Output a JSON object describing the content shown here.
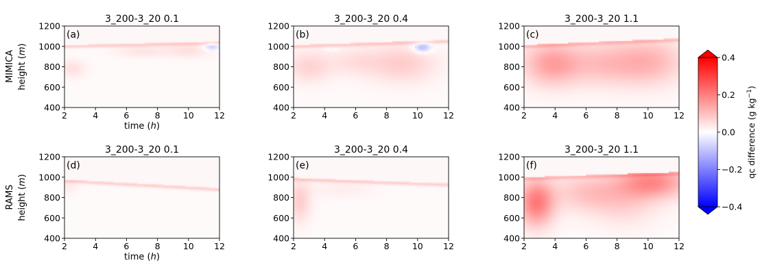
{
  "figure": {
    "row_labels": [
      "MIMICA",
      "RAMS"
    ],
    "ylabel": "height (",
    "ylabel_unit": "m",
    "xlabel": "time (",
    "xlabel_unit": "h",
    "colorbar_label": "qc difference (g kg",
    "colorbar_label_exp": "−1",
    "colorbar_label_tail": ")",
    "colorbar_ticks": [
      "0.4",
      "0.2",
      "0.0",
      "−0.2",
      "−0.4"
    ],
    "colorbar_range": [
      -0.4,
      0.4
    ],
    "colormap": "bwr",
    "colors": {
      "neg": "#0000ff",
      "zero": "#ffffff",
      "pos": "#ff0000"
    }
  },
  "chart_data": [
    {
      "type": "heatmap",
      "panel": "(a)",
      "title": "3_200-3_20 0.1",
      "row": "MIMICA",
      "xlim": [
        2,
        12
      ],
      "ylim": [
        400,
        1200
      ],
      "xticks": [
        "2",
        "4",
        "6",
        "8",
        "10",
        "12"
      ],
      "yticks": [
        "400",
        "600",
        "800",
        "1000",
        "1200"
      ],
      "cloud_top": [
        [
          2,
          1000
        ],
        [
          12,
          1035
        ]
      ],
      "blobs": [
        {
          "x": 2.5,
          "y": 780,
          "sx": 0.6,
          "sy": 60,
          "v": 0.04
        },
        {
          "x": 7,
          "y": 950,
          "sx": 1.2,
          "sy": 40,
          "v": 0.035
        },
        {
          "x": 10,
          "y": 960,
          "sx": 1.0,
          "sy": 50,
          "v": 0.04
        },
        {
          "x": 11.5,
          "y": 995,
          "sx": 0.35,
          "sy": 25,
          "v": -0.09
        }
      ]
    },
    {
      "type": "heatmap",
      "panel": "(b)",
      "title": "3_200-3_20 0.4",
      "row": "MIMICA",
      "xlim": [
        2,
        12
      ],
      "ylim": [
        400,
        1200
      ],
      "xticks": [
        "2",
        "4",
        "6",
        "8",
        "10",
        "12"
      ],
      "yticks": [
        "400",
        "600",
        "800",
        "1000",
        "1200"
      ],
      "cloud_top": [
        [
          2,
          1000
        ],
        [
          12,
          1050
        ]
      ],
      "blobs": [
        {
          "x": 3,
          "y": 800,
          "sx": 1.0,
          "sy": 110,
          "v": 0.06
        },
        {
          "x": 6,
          "y": 850,
          "sx": 1.2,
          "sy": 100,
          "v": 0.04
        },
        {
          "x": 9,
          "y": 830,
          "sx": 1.5,
          "sy": 130,
          "v": 0.07
        },
        {
          "x": 10.3,
          "y": 990,
          "sx": 0.4,
          "sy": 35,
          "v": -0.13
        },
        {
          "x": 4.5,
          "y": 975,
          "sx": 0.3,
          "sy": 15,
          "v": -0.03
        }
      ]
    },
    {
      "type": "heatmap",
      "panel": "(c)",
      "title": "3_200-3_20 1.1",
      "row": "MIMICA",
      "xlim": [
        2,
        12
      ],
      "ylim": [
        400,
        1200
      ],
      "xticks": [
        "2",
        "4",
        "6",
        "8",
        "10",
        "12"
      ],
      "yticks": [
        "400",
        "600",
        "800",
        "1000",
        "1200"
      ],
      "cloud_top": [
        [
          2,
          1000
        ],
        [
          12,
          1065
        ]
      ],
      "blobs": [
        {
          "x": 3.8,
          "y": 830,
          "sx": 1.3,
          "sy": 150,
          "v": 0.14
        },
        {
          "x": 7,
          "y": 830,
          "sx": 1.5,
          "sy": 150,
          "v": 0.08
        },
        {
          "x": 10,
          "y": 850,
          "sx": 1.6,
          "sy": 160,
          "v": 0.11
        }
      ]
    },
    {
      "type": "heatmap",
      "panel": "(d)",
      "title": "3_200-3_20 0.1",
      "row": "RAMS",
      "xlim": [
        2,
        12
      ],
      "ylim": [
        400,
        1200
      ],
      "xticks": [
        "2",
        "4",
        "6",
        "8",
        "10",
        "12"
      ],
      "yticks": [
        "400",
        "600",
        "800",
        "1000",
        "1200"
      ],
      "cloud_top": [
        [
          2,
          965
        ],
        [
          12,
          880
        ]
      ],
      "blobs": [
        {
          "x": 2.3,
          "y": 920,
          "sx": 0.4,
          "sy": 60,
          "v": 0.025
        }
      ]
    },
    {
      "type": "heatmap",
      "panel": "(e)",
      "title": "3_200-3_20 0.4",
      "row": "RAMS",
      "xlim": [
        2,
        12
      ],
      "ylim": [
        400,
        1200
      ],
      "xticks": [
        "2",
        "4",
        "6",
        "8",
        "10",
        "12"
      ],
      "yticks": [
        "400",
        "600",
        "800",
        "1000",
        "1200"
      ],
      "cloud_top": [
        [
          2,
          980
        ],
        [
          12,
          925
        ]
      ],
      "blobs": [
        {
          "x": 2.4,
          "y": 760,
          "sx": 0.5,
          "sy": 140,
          "v": 0.07
        },
        {
          "x": 5,
          "y": 880,
          "sx": 1.5,
          "sy": 60,
          "v": 0.02
        }
      ]
    },
    {
      "type": "heatmap",
      "panel": "(f)",
      "title": "3_200-3_20 1.1",
      "row": "RAMS",
      "xlim": [
        2,
        12
      ],
      "ylim": [
        400,
        1200
      ],
      "xticks": [
        "2",
        "4",
        "6",
        "8",
        "10",
        "12"
      ],
      "yticks": [
        "400",
        "600",
        "800",
        "1000",
        "1200"
      ],
      "cloud_top": [
        [
          2,
          985
        ],
        [
          12,
          1035
        ]
      ],
      "blobs": [
        {
          "x": 2.8,
          "y": 750,
          "sx": 0.8,
          "sy": 160,
          "v": 0.2
        },
        {
          "x": 6,
          "y": 850,
          "sx": 1.5,
          "sy": 130,
          "v": 0.08
        },
        {
          "x": 10.3,
          "y": 950,
          "sx": 1.6,
          "sy": 110,
          "v": 0.17
        },
        {
          "x": 8.5,
          "y": 760,
          "sx": 1.5,
          "sy": 160,
          "v": 0.06
        }
      ]
    }
  ]
}
